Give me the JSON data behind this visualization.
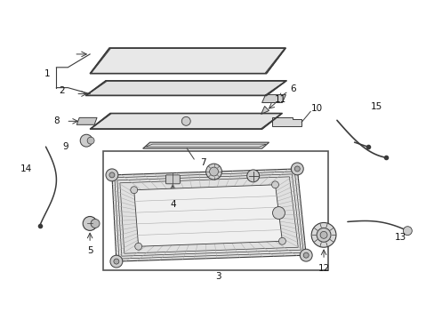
{
  "bg_color": "#ffffff",
  "line_color": "#3a3a3a",
  "fig_width": 4.89,
  "fig_height": 3.6,
  "dpi": 100
}
